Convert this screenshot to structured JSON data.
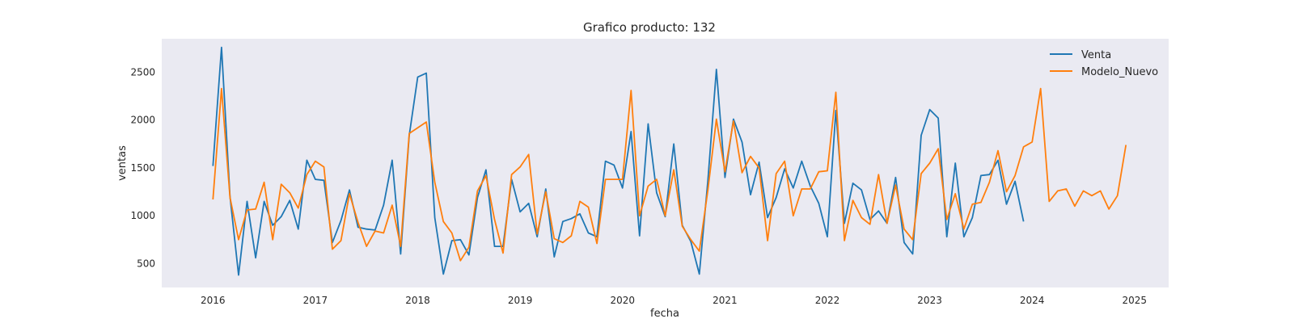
{
  "chart_data": {
    "type": "line",
    "title": "Grafico producto: 132",
    "xlabel": "fecha",
    "ylabel": "ventas",
    "x_ticks": [
      "2016",
      "2017",
      "2018",
      "2019",
      "2020",
      "2021",
      "2022",
      "2023",
      "2024",
      "2025"
    ],
    "y_ticks": [
      500,
      1000,
      1500,
      2000,
      2500
    ],
    "xlim": [
      "2015-07",
      "2025-05"
    ],
    "ylim": [
      250,
      2850
    ],
    "grid": false,
    "legend": "top-right",
    "colors": {
      "plot_bg": "#eaeaf2",
      "Venta": "#1f77b4",
      "Modelo_Nuevo": "#ff7f0e"
    },
    "series": [
      {
        "name": "Venta",
        "start": "2016-01",
        "values": [
          1520,
          2760,
          1200,
          380,
          1150,
          560,
          1150,
          900,
          990,
          1160,
          860,
          1580,
          1380,
          1370,
          720,
          950,
          1270,
          880,
          860,
          850,
          1110,
          1580,
          600,
          1840,
          2450,
          2490,
          980,
          390,
          740,
          750,
          590,
          1190,
          1480,
          680,
          680,
          1380,
          1040,
          1130,
          780,
          1280,
          570,
          940,
          970,
          1020,
          820,
          780,
          1570,
          1530,
          1290,
          1880,
          790,
          1960,
          1240,
          990,
          1750,
          900,
          730,
          390,
          1370,
          2530,
          1400,
          2010,
          1770,
          1220,
          1560,
          980,
          1190,
          1490,
          1290,
          1570,
          1310,
          1130,
          780,
          2100,
          920,
          1340,
          1270,
          960,
          1050,
          920,
          1400,
          720,
          600,
          1840,
          2110,
          2020,
          780,
          1550,
          780,
          980,
          1420,
          1430,
          1580,
          1120,
          1360,
          940
        ]
      },
      {
        "name": "Modelo_Nuevo",
        "start": "2016-01",
        "values": [
          1170,
          2330,
          1190,
          750,
          1060,
          1070,
          1350,
          750,
          1330,
          1240,
          1080,
          1430,
          1570,
          1510,
          650,
          740,
          1230,
          930,
          680,
          840,
          820,
          1110,
          680,
          1860,
          1920,
          1980,
          1350,
          940,
          820,
          530,
          670,
          1260,
          1420,
          960,
          610,
          1430,
          1510,
          1640,
          810,
          1250,
          760,
          720,
          790,
          1150,
          1090,
          710,
          1380,
          1380,
          1380,
          2310,
          1000,
          1310,
          1380,
          1000,
          1480,
          890,
          750,
          630,
          1270,
          2010,
          1460,
          1990,
          1450,
          1620,
          1500,
          740,
          1440,
          1570,
          1000,
          1280,
          1280,
          1460,
          1470,
          2290,
          740,
          1160,
          980,
          910,
          1430,
          920,
          1320,
          860,
          750,
          1440,
          1550,
          1700,
          960,
          1230,
          860,
          1120,
          1140,
          1350,
          1680,
          1250,
          1420,
          1720,
          1770,
          2330,
          1150,
          1260,
          1280,
          1100,
          1260,
          1210,
          1260,
          1070,
          1210,
          1740
        ]
      }
    ]
  }
}
